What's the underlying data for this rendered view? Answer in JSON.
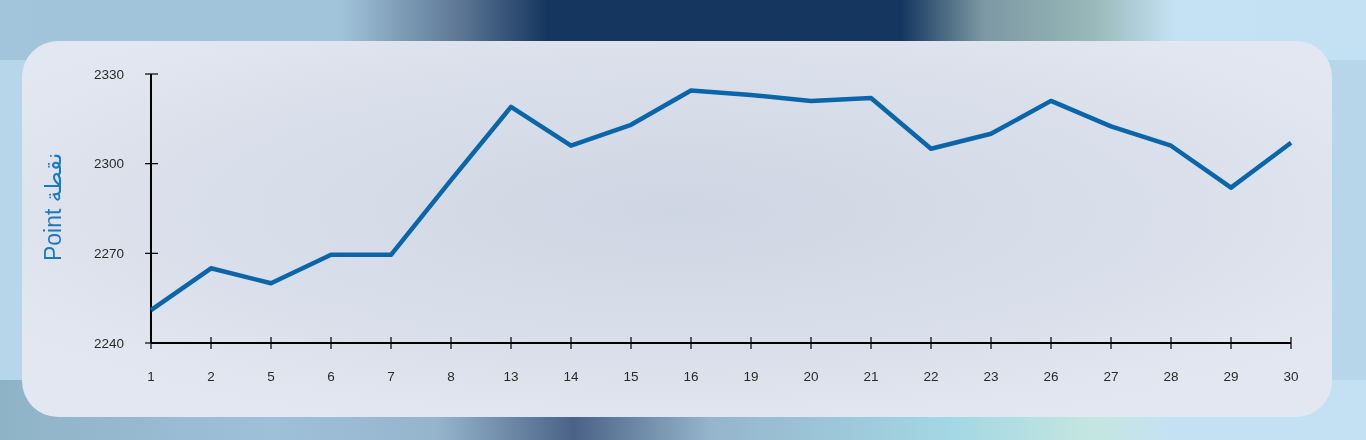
{
  "chart_data": {
    "type": "line",
    "ylabel": "Point نقطة",
    "categories": [
      "1",
      "2",
      "5",
      "6",
      "7",
      "8",
      "13",
      "14",
      "15",
      "16",
      "19",
      "20",
      "21",
      "22",
      "23",
      "26",
      "27",
      "28",
      "29",
      "30"
    ],
    "series": [
      {
        "color": "#0a66a8",
        "values": [
          2251,
          2265,
          2260,
          2269.5,
          2269.5,
          2294.5,
          2319,
          2306,
          2313,
          2324.5,
          2323,
          2321,
          2322,
          2305,
          2310,
          2321,
          2312.5,
          2306,
          2292,
          2307
        ]
      }
    ],
    "ylim": [
      2240,
      2330
    ],
    "yticks": [
      2240,
      2270,
      2300,
      2330
    ],
    "line_style": "solid"
  }
}
